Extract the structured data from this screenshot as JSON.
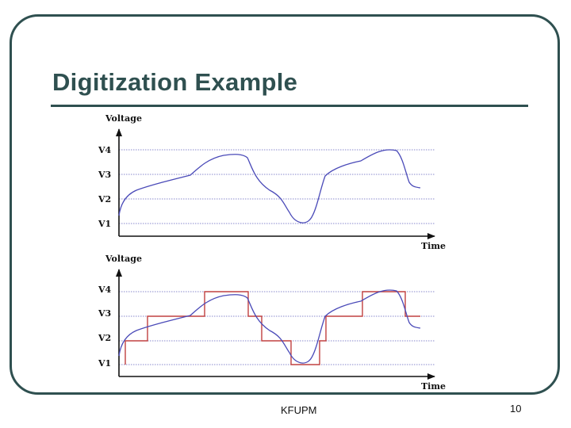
{
  "slide": {
    "title": "Digitization Example",
    "footer": "KFUPM",
    "page_number": "10"
  },
  "figure": {
    "colors": {
      "analog_signal": "#4a4ab8",
      "quantized_signal": "#c04040",
      "axis": "#111111",
      "gridline": "#8888cc"
    },
    "top_plot": {
      "y_axis_label": "Voltage",
      "x_axis_label": "Time",
      "levels": [
        "V4",
        "V3",
        "V2",
        "V1"
      ]
    },
    "bottom_plot": {
      "y_axis_label": "Voltage",
      "x_axis_label": "Time",
      "levels": [
        "V4",
        "V3",
        "V2",
        "V1"
      ]
    }
  }
}
